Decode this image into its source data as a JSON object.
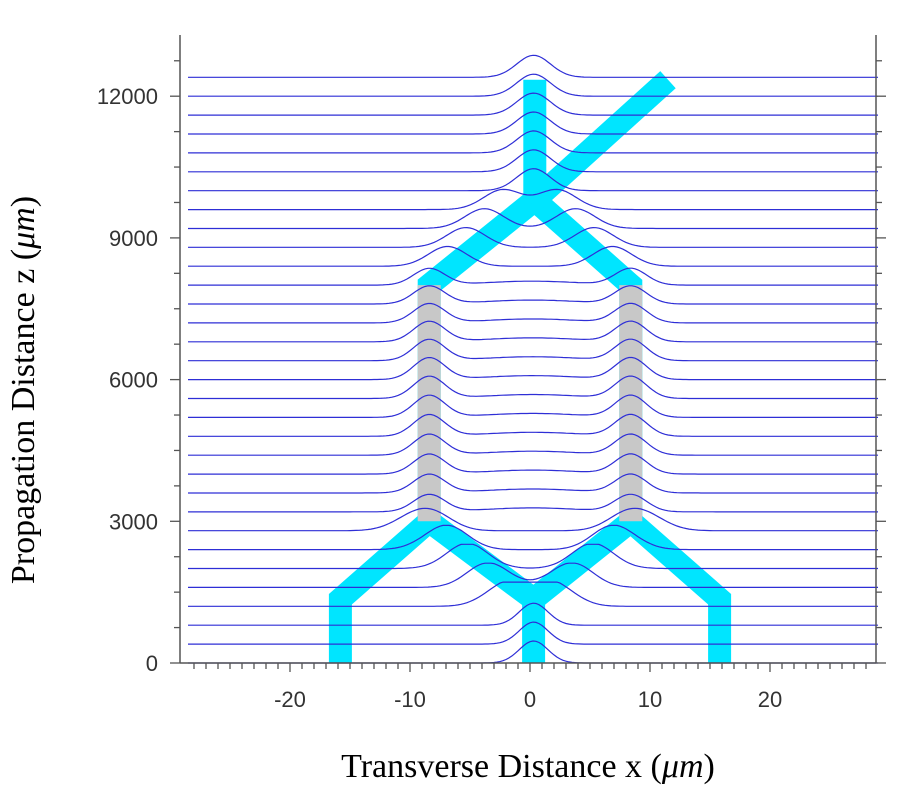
{
  "chart_data": {
    "type": "line",
    "title": "",
    "xlabel": "Transverse Distance x (",
    "xlabel_unit": "μm",
    "xlabel_close": ")",
    "ylabel": "Propagation Distance z (",
    "ylabel_unit": "μm",
    "ylabel_close": ")",
    "xlim": [
      -29,
      29
    ],
    "ylim": [
      0,
      12500
    ],
    "x_ticks": [
      -20,
      -10,
      0,
      10,
      20
    ],
    "y_ticks": [
      0,
      3000,
      6000,
      9000,
      12000
    ],
    "profile_count": 32,
    "profile_spacing_um": 400,
    "colors": {
      "profile": "#2e2ed6",
      "waveguide": "#00e5ff",
      "coupling_region": "#c8c8c8",
      "axis": "#555555"
    },
    "waveguides": [
      {
        "name": "input-left",
        "points": [
          [
            -15.8,
            0
          ],
          [
            -15.8,
            1350
          ],
          [
            -8.4,
            3000
          ],
          [
            -8.4,
            8000
          ],
          [
            0.4,
            9800
          ],
          [
            0.4,
            12350
          ]
        ]
      },
      {
        "name": "input-right",
        "points": [
          [
            15.8,
            0
          ],
          [
            15.8,
            1350
          ],
          [
            8.4,
            3000
          ],
          [
            8.4,
            8000
          ],
          [
            0.4,
            9800
          ]
        ]
      },
      {
        "name": "input-center-left",
        "points": [
          [
            0.3,
            0
          ],
          [
            0.3,
            1350
          ],
          [
            -8.4,
            3000
          ]
        ]
      },
      {
        "name": "input-center-right",
        "points": [
          [
            0.3,
            1350
          ],
          [
            8.4,
            3000
          ]
        ]
      },
      {
        "name": "output-branch",
        "points": [
          [
            0.4,
            9800
          ],
          [
            11.5,
            12350
          ]
        ]
      }
    ],
    "coupling_regions": [
      {
        "name": "left-guide",
        "x": -8.4,
        "z_start": 3000,
        "z_end": 8000
      },
      {
        "name": "right-guide",
        "x": 8.4,
        "z_start": 3000,
        "z_end": 8000
      }
    ]
  }
}
